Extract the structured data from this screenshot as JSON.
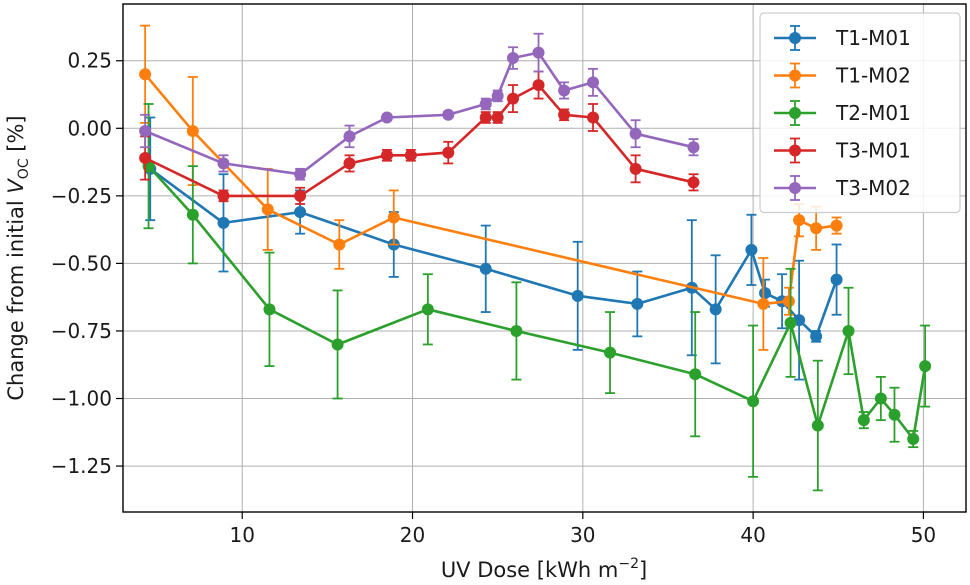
{
  "chart_data": {
    "type": "line",
    "title": "",
    "xlabel": "UV Dose [kWh m",
    "xlabel_sup": "−2",
    "xlabel_end": "]",
    "ylabel_pre": "Change from initial ",
    "ylabel_var": "V",
    "ylabel_sub": "OC",
    "ylabel_post": " [%]",
    "xlim": [
      3,
      52.5
    ],
    "ylim": [
      -1.42,
      0.46
    ],
    "xticks": [
      10,
      20,
      30,
      40,
      50
    ],
    "xtick_labels": [
      "10",
      "20",
      "30",
      "40",
      "50"
    ],
    "yticks": [
      0.25,
      0.0,
      -0.25,
      -0.5,
      -0.75,
      -1.0,
      -1.25
    ],
    "ytick_labels": [
      "0.25",
      "0.00",
      "−0.25",
      "−0.50",
      "−0.75",
      "−1.00",
      "−1.25"
    ],
    "grid": true,
    "legend_position": "top-right",
    "series": [
      {
        "name": "T1-M01",
        "color": "#1f77b4",
        "points": [
          {
            "x": 4.6,
            "y": -0.15,
            "err": 0.19
          },
          {
            "x": 8.9,
            "y": -0.35,
            "err": 0.18
          },
          {
            "x": 13.4,
            "y": -0.31,
            "err": 0.08
          },
          {
            "x": 18.9,
            "y": -0.43,
            "err": 0.12
          },
          {
            "x": 24.3,
            "y": -0.52,
            "err": 0.16
          },
          {
            "x": 29.7,
            "y": -0.62,
            "err": 0.2
          },
          {
            "x": 33.2,
            "y": -0.65,
            "err": 0.12
          },
          {
            "x": 36.4,
            "y": -0.59,
            "err": 0.25
          },
          {
            "x": 37.8,
            "y": -0.67,
            "err": 0.2
          },
          {
            "x": 39.9,
            "y": -0.45,
            "err": 0.13
          },
          {
            "x": 40.7,
            "y": -0.61,
            "err": 0.05
          },
          {
            "x": 41.7,
            "y": -0.64,
            "err": 0.1
          },
          {
            "x": 42.7,
            "y": -0.71,
            "err": 0.22
          },
          {
            "x": 43.7,
            "y": -0.77,
            "err": 0.02
          },
          {
            "x": 44.9,
            "y": -0.56,
            "err": 0.13
          }
        ]
      },
      {
        "name": "T1-M02",
        "color": "#ff7f0e",
        "points": [
          {
            "x": 4.3,
            "y": 0.2,
            "err": 0.18
          },
          {
            "x": 7.1,
            "y": -0.01,
            "err": 0.2
          },
          {
            "x": 11.5,
            "y": -0.3,
            "err": 0.15
          },
          {
            "x": 15.7,
            "y": -0.43,
            "err": 0.09
          },
          {
            "x": 18.9,
            "y": -0.33,
            "err": 0.1
          },
          {
            "x": 40.6,
            "y": -0.65,
            "err": 0.17
          },
          {
            "x": 42.1,
            "y": -0.64,
            "err": 0.05
          },
          {
            "x": 42.7,
            "y": -0.34,
            "err": 0.06
          },
          {
            "x": 43.7,
            "y": -0.37,
            "err": 0.08
          },
          {
            "x": 44.9,
            "y": -0.36,
            "err": 0.03
          }
        ]
      },
      {
        "name": "T2-M01",
        "color": "#2ca02c",
        "points": [
          {
            "x": 4.5,
            "y": -0.14,
            "err": 0.23
          },
          {
            "x": 7.1,
            "y": -0.32,
            "err": 0.18
          },
          {
            "x": 11.6,
            "y": -0.67,
            "err": 0.21
          },
          {
            "x": 15.6,
            "y": -0.8,
            "err": 0.2
          },
          {
            "x": 20.9,
            "y": -0.67,
            "err": 0.13
          },
          {
            "x": 26.1,
            "y": -0.75,
            "err": 0.18
          },
          {
            "x": 31.6,
            "y": -0.83,
            "err": 0.15
          },
          {
            "x": 36.6,
            "y": -0.91,
            "err": 0.23
          },
          {
            "x": 40.0,
            "y": -1.01,
            "err": 0.28
          },
          {
            "x": 42.2,
            "y": -0.72,
            "err": 0.2
          },
          {
            "x": 43.8,
            "y": -1.1,
            "err": 0.24
          },
          {
            "x": 45.6,
            "y": -0.75,
            "err": 0.16
          },
          {
            "x": 46.5,
            "y": -1.08,
            "err": 0.03
          },
          {
            "x": 47.5,
            "y": -1.0,
            "err": 0.08
          },
          {
            "x": 48.3,
            "y": -1.06,
            "err": 0.1
          },
          {
            "x": 49.4,
            "y": -1.15,
            "err": 0.03
          },
          {
            "x": 50.1,
            "y": -0.88,
            "err": 0.15
          }
        ]
      },
      {
        "name": "T3-M01",
        "color": "#d62728",
        "points": [
          {
            "x": 4.3,
            "y": -0.11,
            "err": 0.08
          },
          {
            "x": 8.9,
            "y": -0.25,
            "err": 0.02
          },
          {
            "x": 13.4,
            "y": -0.25,
            "err": 0.03
          },
          {
            "x": 16.3,
            "y": -0.13,
            "err": 0.03
          },
          {
            "x": 18.5,
            "y": -0.1,
            "err": 0.02
          },
          {
            "x": 19.9,
            "y": -0.1,
            "err": 0.02
          },
          {
            "x": 22.1,
            "y": -0.09,
            "err": 0.04
          },
          {
            "x": 24.3,
            "y": 0.04,
            "err": 0.02
          },
          {
            "x": 25.0,
            "y": 0.04,
            "err": 0.02
          },
          {
            "x": 25.9,
            "y": 0.11,
            "err": 0.05
          },
          {
            "x": 27.4,
            "y": 0.16,
            "err": 0.05
          },
          {
            "x": 28.9,
            "y": 0.05,
            "err": 0.02
          },
          {
            "x": 30.6,
            "y": 0.04,
            "err": 0.05
          },
          {
            "x": 33.1,
            "y": -0.15,
            "err": 0.05
          },
          {
            "x": 36.5,
            "y": -0.2,
            "err": 0.03
          }
        ]
      },
      {
        "name": "T3-M02",
        "color": "#9467bd",
        "points": [
          {
            "x": 4.3,
            "y": -0.01,
            "err": 0.06
          },
          {
            "x": 8.9,
            "y": -0.13,
            "err": 0.03
          },
          {
            "x": 13.4,
            "y": -0.17,
            "err": 0.02
          },
          {
            "x": 16.3,
            "y": -0.03,
            "err": 0.04
          },
          {
            "x": 18.5,
            "y": 0.04,
            "err": 0.01
          },
          {
            "x": 22.1,
            "y": 0.05,
            "err": 0.01
          },
          {
            "x": 24.3,
            "y": 0.09,
            "err": 0.02
          },
          {
            "x": 25.0,
            "y": 0.12,
            "err": 0.02
          },
          {
            "x": 25.9,
            "y": 0.26,
            "err": 0.04
          },
          {
            "x": 27.4,
            "y": 0.28,
            "err": 0.07
          },
          {
            "x": 28.9,
            "y": 0.14,
            "err": 0.03
          },
          {
            "x": 30.6,
            "y": 0.17,
            "err": 0.05
          },
          {
            "x": 33.1,
            "y": -0.02,
            "err": 0.05
          },
          {
            "x": 36.5,
            "y": -0.07,
            "err": 0.03
          }
        ]
      }
    ]
  }
}
